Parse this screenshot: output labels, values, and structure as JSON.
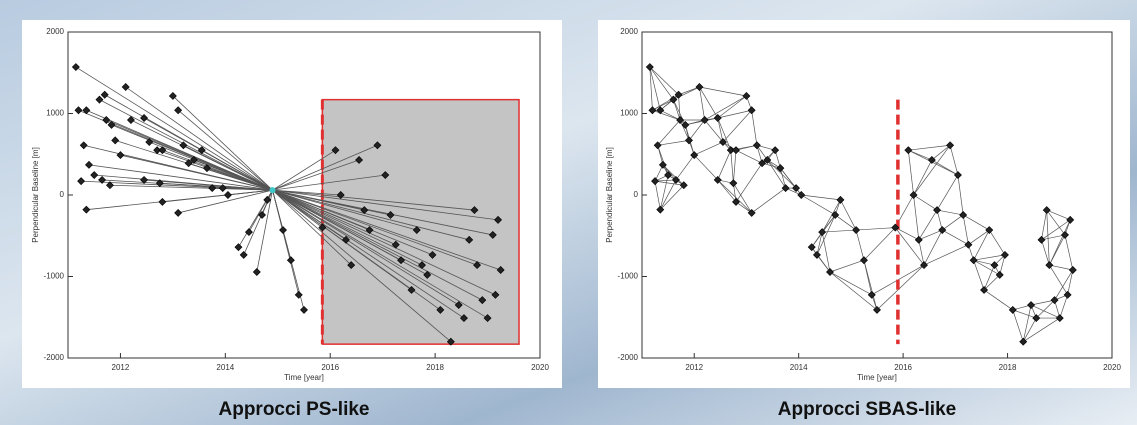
{
  "chart_data": [
    {
      "type": "scatter",
      "network": "star",
      "title": "Approcci PS-like",
      "xlabel": "Time [year]",
      "ylabel": "Perpendicular Baseline [m]",
      "xlim": [
        2011,
        2020
      ],
      "ylim": [
        -2000,
        2000
      ],
      "xticks": [
        2012,
        2014,
        2016,
        2018,
        2020
      ],
      "yticks": [
        -2000,
        -1000,
        0,
        1000,
        2000
      ],
      "color": "#222222",
      "edge_color": "#555555",
      "reference": {
        "x": 2014.9,
        "y": 60,
        "color": "#3cc8c8"
      },
      "highlight": {
        "x": [
          2015.85,
          2019.6
        ],
        "y": [
          -1830,
          1170
        ],
        "fill": "#c4c4c4",
        "stroke": "#e03030"
      },
      "x": [
        2011.15,
        2011.2,
        2011.35,
        2011.3,
        2011.4,
        2011.5,
        2011.25,
        2011.35,
        2011.6,
        2011.7,
        2011.73,
        2011.83,
        2011.65,
        2011.8,
        2011.9,
        2012.0,
        2012.1,
        2012.2,
        2012.45,
        2012.55,
        2012.7,
        2012.8,
        2012.75,
        2012.45,
        2013.0,
        2013.1,
        2013.2,
        2013.3,
        2013.4,
        2013.1,
        2012.8,
        2013.55,
        2013.65,
        2013.75,
        2013.95,
        2014.05,
        2014.25,
        2014.35,
        2014.45,
        2014.6,
        2014.7,
        2014.8,
        2015.1,
        2015.25,
        2015.4,
        2015.5,
        2015.85,
        2016.1,
        2016.2,
        2016.3,
        2016.4,
        2016.55,
        2016.65,
        2016.75,
        2016.9,
        2017.05,
        2017.15,
        2017.25,
        2017.35,
        2017.55,
        2017.65,
        2017.75,
        2017.85,
        2017.95,
        2018.1,
        2018.3,
        2018.45,
        2018.55,
        2018.65,
        2018.75,
        2018.8,
        2018.9,
        2019.0,
        2019.1,
        2019.15,
        2019.2,
        2019.25
      ],
      "values": [
        1570,
        1040,
        1040,
        610,
        370,
        245,
        170,
        -180,
        1170,
        1230,
        920,
        860,
        185,
        120,
        670,
        490,
        1325,
        920,
        945,
        650,
        550,
        550,
        145,
        185,
        1215,
        1040,
        610,
        390,
        430,
        -220,
        -85,
        550,
        330,
        85,
        85,
        0,
        -640,
        -735,
        -455,
        -945,
        -245,
        -60,
        -430,
        -800,
        -1225,
        -1410,
        -400,
        550,
        0,
        -550,
        -860,
        430,
        -185,
        -430,
        610,
        245,
        -245,
        -610,
        -800,
        -1165,
        -430,
        -860,
        -980,
        -735,
        -1410,
        -1800,
        -1350,
        -1510,
        -550,
        -185,
        -860,
        -1290,
        -1510,
        -490,
        -1225,
        -305,
        -920
      ]
    },
    {
      "type": "scatter",
      "network": "small-baseline",
      "title": "Approcci SBAS-like",
      "xlabel": "Time [year]",
      "ylabel": "Perpendicular Baseline [m]",
      "xlim": [
        2011,
        2020
      ],
      "ylim": [
        -2000,
        2000
      ],
      "xticks": [
        2012,
        2014,
        2016,
        2018,
        2020
      ],
      "yticks": [
        -2000,
        -1000,
        0,
        1000,
        2000
      ],
      "color": "#222222",
      "edge_color": "#555555",
      "reference_line": {
        "x": 2015.9,
        "color": "#e03030"
      },
      "x": [
        2011.15,
        2011.2,
        2011.35,
        2011.3,
        2011.4,
        2011.5,
        2011.25,
        2011.35,
        2011.6,
        2011.7,
        2011.73,
        2011.83,
        2011.65,
        2011.8,
        2011.9,
        2012.0,
        2012.1,
        2012.2,
        2012.45,
        2012.55,
        2012.7,
        2012.8,
        2012.75,
        2012.45,
        2013.0,
        2013.1,
        2013.2,
        2013.3,
        2013.4,
        2013.1,
        2012.8,
        2013.55,
        2013.65,
        2013.75,
        2013.95,
        2014.05,
        2014.25,
        2014.35,
        2014.45,
        2014.6,
        2014.7,
        2014.8,
        2015.1,
        2015.25,
        2015.4,
        2015.5,
        2015.85,
        2016.1,
        2016.2,
        2016.3,
        2016.4,
        2016.55,
        2016.65,
        2016.75,
        2016.9,
        2017.05,
        2017.15,
        2017.25,
        2017.35,
        2017.55,
        2017.65,
        2017.75,
        2017.85,
        2017.95,
        2018.1,
        2018.3,
        2018.45,
        2018.55,
        2018.65,
        2018.75,
        2018.8,
        2018.9,
        2019.0,
        2019.1,
        2019.15,
        2019.2,
        2019.25
      ],
      "values": [
        1570,
        1040,
        1040,
        610,
        370,
        245,
        170,
        -180,
        1170,
        1230,
        920,
        860,
        185,
        120,
        670,
        490,
        1325,
        920,
        945,
        650,
        550,
        550,
        145,
        185,
        1215,
        1040,
        610,
        390,
        430,
        -220,
        -85,
        550,
        330,
        85,
        85,
        0,
        -640,
        -735,
        -455,
        -945,
        -245,
        -60,
        -430,
        -800,
        -1225,
        -1410,
        -400,
        550,
        0,
        -550,
        -860,
        430,
        -185,
        -430,
        610,
        245,
        -245,
        -610,
        -800,
        -1165,
        -430,
        -860,
        -980,
        -735,
        -1410,
        -1800,
        -1350,
        -1510,
        -550,
        -185,
        -860,
        -1290,
        -1510,
        -490,
        -1225,
        -305,
        -920
      ]
    }
  ]
}
